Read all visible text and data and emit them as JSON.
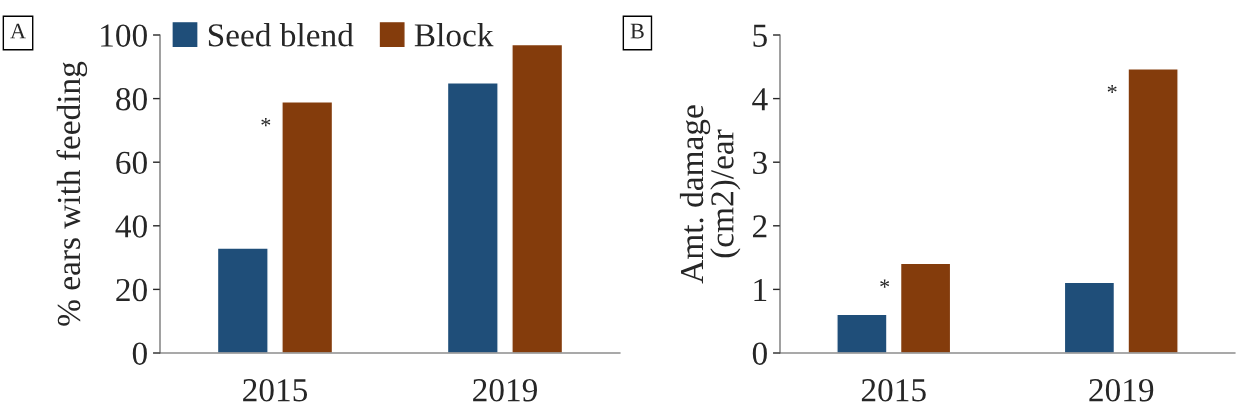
{
  "chart_data": [
    {
      "type": "bar",
      "categories": [
        "2015",
        "2019"
      ],
      "ylabel": "% ears with feeding",
      "ylim": [
        0,
        100
      ],
      "yticks": [
        0,
        20,
        40,
        60,
        80,
        100
      ],
      "grid": false,
      "legend": "top left",
      "series": [
        {
          "name": "Seed blend",
          "color": "#1f4e79",
          "values": [
            33,
            85
          ]
        },
        {
          "name": "Block",
          "color": "#843c0c",
          "values": [
            79,
            97
          ]
        }
      ],
      "annotations": [
        "A",
        "*"
      ]
    },
    {
      "type": "bar",
      "categories": [
        "2015",
        "2019"
      ],
      "ylabel": "Amt. damage\n(cm2)/ear",
      "ylim": [
        0,
        5
      ],
      "yticks": [
        0,
        1,
        2,
        3,
        4,
        5
      ],
      "grid": false,
      "series": [
        {
          "color": "#1f4e79",
          "values": [
            0.61,
            1.11
          ]
        },
        {
          "color": "#843c0c",
          "values": [
            1.41,
            4.47
          ]
        }
      ],
      "annotations": [
        "B",
        "*",
        "*"
      ]
    }
  ]
}
